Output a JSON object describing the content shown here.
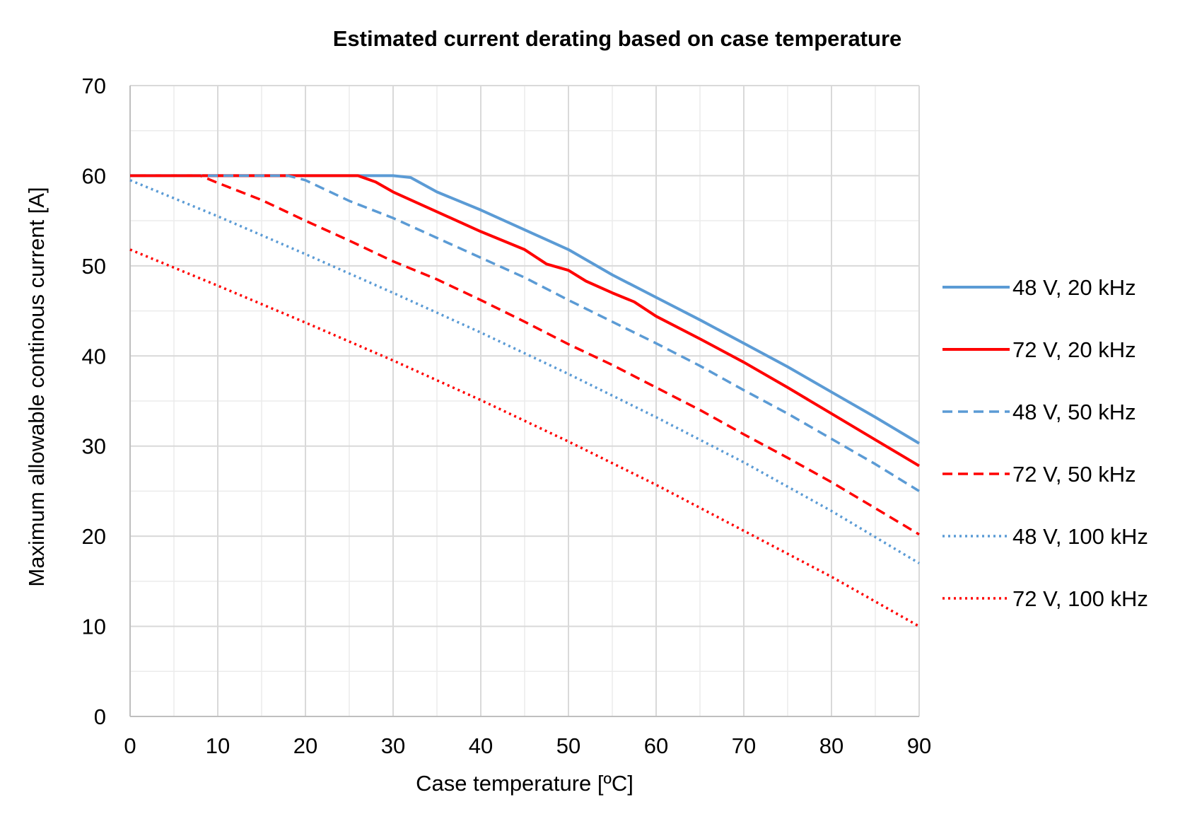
{
  "chart_data": {
    "type": "line",
    "title": "Estimated current derating based on case temperature",
    "xlabel": "Case temperature [ºC]",
    "ylabel": "Maximum allowable continous current [A]",
    "xlim": [
      0,
      90
    ],
    "ylim": [
      0,
      70
    ],
    "x_ticks": [
      0,
      10,
      20,
      30,
      40,
      50,
      60,
      70,
      80,
      90
    ],
    "y_ticks": [
      0,
      10,
      20,
      30,
      40,
      50,
      60,
      70
    ],
    "x_minor_step": 5,
    "y_minor_step": 5,
    "grid": true,
    "legend_position": "right",
    "colors": {
      "blue": "#5b9bd5",
      "red": "#ff0000",
      "grid": "#d9d9d9"
    },
    "series": [
      {
        "name": "48 V, 20 kHz",
        "color": "#5b9bd5",
        "dash": "solid",
        "points": [
          [
            0,
            60
          ],
          [
            5,
            60
          ],
          [
            10,
            60
          ],
          [
            15,
            60
          ],
          [
            20,
            60
          ],
          [
            25,
            60
          ],
          [
            30,
            60
          ],
          [
            32,
            59.8
          ],
          [
            35,
            58.2
          ],
          [
            40,
            56.2
          ],
          [
            45,
            54
          ],
          [
            50,
            51.8
          ],
          [
            55,
            49
          ],
          [
            60,
            46.5
          ],
          [
            65,
            44
          ],
          [
            70,
            41.4
          ],
          [
            75,
            38.8
          ],
          [
            80,
            36
          ],
          [
            85,
            33.2
          ],
          [
            90,
            30.3
          ]
        ]
      },
      {
        "name": "72 V, 20 kHz",
        "color": "#ff0000",
        "dash": "solid",
        "points": [
          [
            0,
            60
          ],
          [
            5,
            60
          ],
          [
            10,
            60
          ],
          [
            15,
            60
          ],
          [
            20,
            60
          ],
          [
            25,
            60
          ],
          [
            26,
            60
          ],
          [
            28,
            59.3
          ],
          [
            30,
            58.2
          ],
          [
            35,
            56
          ],
          [
            40,
            53.8
          ],
          [
            45,
            51.8
          ],
          [
            47.5,
            50.2
          ],
          [
            50,
            49.5
          ],
          [
            52,
            48.3
          ],
          [
            55,
            47
          ],
          [
            57.5,
            46
          ],
          [
            60,
            44.4
          ],
          [
            65,
            41.9
          ],
          [
            70,
            39.3
          ],
          [
            75,
            36.5
          ],
          [
            80,
            33.6
          ],
          [
            85,
            30.7
          ],
          [
            90,
            27.8
          ]
        ]
      },
      {
        "name": "48 V, 50 kHz",
        "color": "#5b9bd5",
        "dash": "dashed",
        "points": [
          [
            0,
            60
          ],
          [
            5,
            60
          ],
          [
            10,
            60
          ],
          [
            15,
            60
          ],
          [
            18,
            60
          ],
          [
            20,
            59.5
          ],
          [
            25,
            57.2
          ],
          [
            30,
            55.3
          ],
          [
            35,
            53.1
          ],
          [
            40,
            50.9
          ],
          [
            45,
            48.7
          ],
          [
            50,
            46.2
          ],
          [
            55,
            43.8
          ],
          [
            60,
            41.4
          ],
          [
            65,
            38.9
          ],
          [
            70,
            36.2
          ],
          [
            75,
            33.6
          ],
          [
            80,
            30.8
          ],
          [
            85,
            28
          ],
          [
            90,
            25
          ]
        ]
      },
      {
        "name": "72 V, 50 kHz",
        "color": "#ff0000",
        "dash": "dashed",
        "points": [
          [
            0,
            60
          ],
          [
            5,
            60
          ],
          [
            8,
            60
          ],
          [
            10,
            59.2
          ],
          [
            15,
            57.3
          ],
          [
            20,
            55
          ],
          [
            25,
            52.8
          ],
          [
            30,
            50.5
          ],
          [
            35,
            48.5
          ],
          [
            40,
            46.2
          ],
          [
            45,
            43.8
          ],
          [
            50,
            41.3
          ],
          [
            55,
            39
          ],
          [
            60,
            36.5
          ],
          [
            65,
            34
          ],
          [
            70,
            31.3
          ],
          [
            75,
            28.7
          ],
          [
            80,
            26
          ],
          [
            85,
            23.1
          ],
          [
            90,
            20.2
          ]
        ]
      },
      {
        "name": "48 V, 100 kHz",
        "color": "#5b9bd5",
        "dash": "dotted",
        "points": [
          [
            0,
            59.5
          ],
          [
            10,
            55.5
          ],
          [
            20,
            51.3
          ],
          [
            30,
            47
          ],
          [
            40,
            42.6
          ],
          [
            50,
            38
          ],
          [
            60,
            33.2
          ],
          [
            70,
            28.2
          ],
          [
            80,
            22.8
          ],
          [
            90,
            17
          ]
        ]
      },
      {
        "name": "72 V, 100 kHz",
        "color": "#ff0000",
        "dash": "dotted",
        "points": [
          [
            0,
            51.8
          ],
          [
            10,
            47.8
          ],
          [
            20,
            43.7
          ],
          [
            30,
            39.5
          ],
          [
            40,
            35.1
          ],
          [
            50,
            30.5
          ],
          [
            60,
            25.7
          ],
          [
            70,
            20.6
          ],
          [
            80,
            15.5
          ],
          [
            90,
            10
          ]
        ]
      }
    ]
  }
}
